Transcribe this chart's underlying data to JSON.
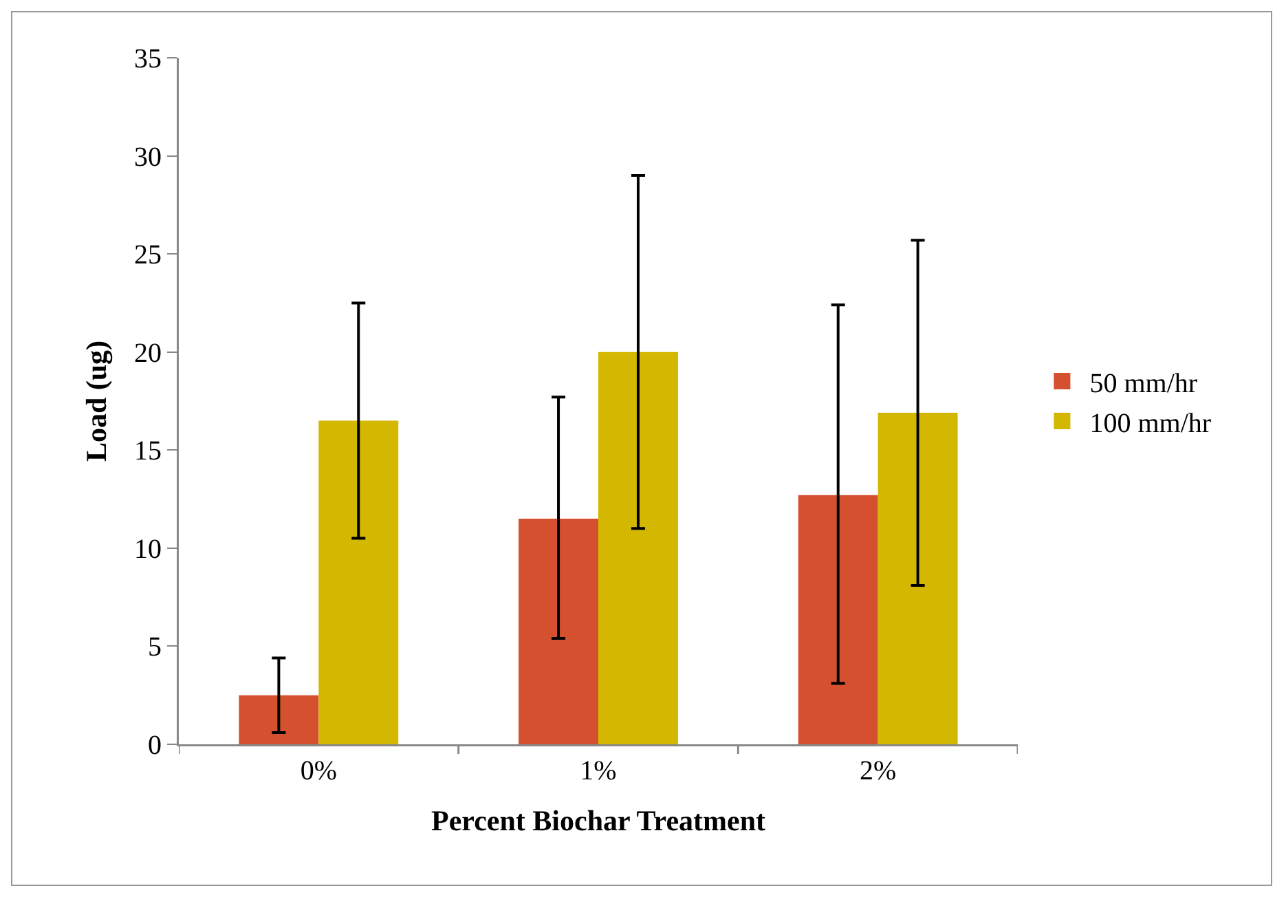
{
  "chart_data": {
    "type": "bar",
    "xlabel": "Percent Biochar Treatment",
    "ylabel": "Load (ug)",
    "categories": [
      "0%",
      "1%",
      "2%"
    ],
    "series": [
      {
        "name": "50 mm/hr",
        "color": "#d4502f",
        "values": [
          2.5,
          11.5,
          12.7
        ],
        "errors": [
          [
            0.6,
            4.4
          ],
          [
            5.4,
            17.7
          ],
          [
            3.1,
            22.4
          ]
        ]
      },
      {
        "name": "100 mm/hr",
        "color": "#d4b700",
        "values": [
          16.5,
          20.0,
          16.9
        ],
        "errors": [
          [
            10.5,
            22.5
          ],
          [
            11.0,
            29.0
          ],
          [
            8.1,
            25.7
          ]
        ]
      }
    ],
    "ylim": [
      0,
      35
    ],
    "yticks": [
      0,
      5,
      10,
      15,
      20,
      25,
      30,
      35
    ],
    "grid": false,
    "legend": "right"
  }
}
